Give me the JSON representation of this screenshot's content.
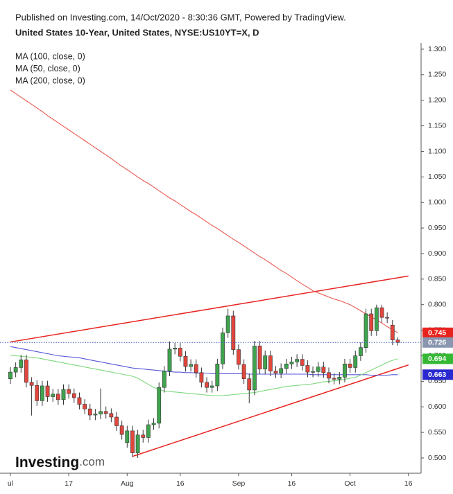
{
  "header": {
    "published": "Published on Investing.com, 14/Oct/2020 - 8:30:36 GMT, Powered by TradingView.",
    "instrument": "United States 10-Year, United States, NYSE:US10YT=X, D"
  },
  "logo": {
    "name": "Investing",
    "suffix": ".com"
  },
  "chart_data": {
    "type": "candlestick",
    "categories": [
      "ul",
      null,
      null,
      null,
      null,
      null,
      null,
      null,
      null,
      null,
      null,
      "17",
      null,
      null,
      null,
      null,
      null,
      null,
      null,
      null,
      null,
      null,
      "Aug",
      null,
      null,
      null,
      null,
      null,
      null,
      null,
      null,
      null,
      "16",
      null,
      null,
      null,
      null,
      null,
      null,
      null,
      null,
      null,
      null,
      "Sep",
      null,
      null,
      null,
      null,
      null,
      null,
      null,
      null,
      null,
      "16",
      null,
      null,
      null,
      null,
      null,
      null,
      null,
      null,
      null,
      null,
      "Oct",
      null,
      null,
      null,
      null,
      null,
      null,
      null,
      null,
      null,
      null,
      "16"
    ],
    "open": [
      0.655,
      0.668,
      0.677,
      0.692,
      0.648,
      0.642,
      0.612,
      0.641,
      0.62,
      0.625,
      0.614,
      0.634,
      0.626,
      0.618,
      0.605,
      0.596,
      0.584,
      0.586,
      0.591,
      0.587,
      0.58,
      0.563,
      0.53,
      0.553,
      0.51,
      0.545,
      0.54,
      0.565,
      0.568,
      0.638,
      0.67,
      0.713,
      0.715,
      0.699,
      0.679,
      0.683,
      0.667,
      0.648,
      0.638,
      0.641,
      0.684,
      0.745,
      0.778,
      0.712,
      0.683,
      0.655,
      0.633,
      0.719,
      0.674,
      0.7,
      0.67,
      0.666,
      0.675,
      0.684,
      0.688,
      0.693,
      0.681,
      0.668,
      0.669,
      0.678,
      0.667,
      0.656,
      0.654,
      0.658,
      0.684,
      0.677,
      0.7,
      0.716,
      0.782,
      0.749,
      0.794,
      0.775,
      0.76,
      0.731,
      null,
      null
    ],
    "high": [
      0.678,
      0.687,
      0.702,
      0.702,
      0.658,
      0.652,
      0.651,
      0.651,
      0.635,
      0.635,
      0.644,
      0.644,
      0.636,
      0.628,
      0.615,
      0.606,
      0.596,
      0.636,
      0.601,
      0.597,
      0.59,
      0.573,
      0.563,
      0.563,
      0.555,
      0.555,
      0.575,
      0.578,
      0.648,
      0.68,
      0.728,
      0.725,
      0.725,
      0.709,
      0.693,
      0.693,
      0.677,
      0.658,
      0.651,
      0.694,
      0.755,
      0.792,
      0.788,
      0.722,
      0.693,
      0.665,
      0.729,
      0.729,
      0.71,
      0.71,
      0.68,
      0.685,
      0.694,
      0.698,
      0.703,
      0.703,
      0.691,
      0.679,
      0.688,
      0.688,
      0.677,
      0.666,
      0.668,
      0.694,
      0.694,
      0.71,
      0.726,
      0.792,
      0.792,
      0.8,
      0.8,
      0.785,
      0.77,
      0.736,
      null,
      null
    ],
    "low": [
      0.645,
      0.658,
      0.667,
      0.638,
      0.583,
      0.602,
      0.602,
      0.61,
      0.61,
      0.604,
      0.604,
      0.616,
      0.608,
      0.595,
      0.586,
      0.574,
      0.574,
      0.576,
      0.577,
      0.57,
      0.553,
      0.536,
      0.52,
      0.502,
      0.5,
      0.53,
      0.53,
      0.555,
      0.558,
      0.628,
      0.66,
      0.703,
      0.689,
      0.669,
      0.669,
      0.657,
      0.638,
      0.628,
      0.628,
      0.631,
      0.674,
      0.735,
      0.702,
      0.673,
      0.645,
      0.607,
      0.623,
      0.664,
      0.664,
      0.66,
      0.656,
      0.656,
      0.665,
      0.674,
      0.678,
      0.671,
      0.658,
      0.658,
      0.659,
      0.657,
      0.646,
      0.644,
      0.644,
      0.648,
      0.667,
      0.667,
      0.69,
      0.706,
      0.739,
      0.739,
      0.765,
      0.764,
      0.721,
      0.72,
      null,
      null
    ],
    "close": [
      0.668,
      0.677,
      0.692,
      0.648,
      0.642,
      0.612,
      0.641,
      0.62,
      0.625,
      0.614,
      0.634,
      0.626,
      0.618,
      0.605,
      0.596,
      0.584,
      0.586,
      0.591,
      0.587,
      0.58,
      0.563,
      0.546,
      0.553,
      0.51,
      0.545,
      0.54,
      0.565,
      0.568,
      0.638,
      0.67,
      0.713,
      0.715,
      0.699,
      0.679,
      0.683,
      0.667,
      0.648,
      0.638,
      0.641,
      0.684,
      0.745,
      0.778,
      0.712,
      0.683,
      0.655,
      0.633,
      0.719,
      0.674,
      0.7,
      0.67,
      0.666,
      0.675,
      0.684,
      0.688,
      0.693,
      0.681,
      0.668,
      0.669,
      0.678,
      0.667,
      0.656,
      0.654,
      0.658,
      0.684,
      0.677,
      0.7,
      0.716,
      0.782,
      0.749,
      0.794,
      0.775,
      0.774,
      0.731,
      0.726,
      null,
      null
    ],
    "up_color": "#3fa34d",
    "down_color": "#e2463c",
    "series": [
      {
        "name": "MA (100, close, 0)",
        "color": "#5656d8",
        "values": [
          0.718,
          0.716,
          0.714,
          0.712,
          0.71,
          0.708,
          0.706,
          0.704,
          0.702,
          0.7,
          0.699,
          0.698,
          0.697,
          0.696,
          0.694,
          0.692,
          0.69,
          0.688,
          0.686,
          0.684,
          0.682,
          0.68,
          0.678,
          0.676,
          0.675,
          0.674,
          0.673,
          0.672,
          0.671,
          0.67,
          0.669,
          0.668,
          0.668,
          0.667,
          0.667,
          0.666,
          0.666,
          0.666,
          0.665,
          0.665,
          0.665,
          0.665,
          0.665,
          0.665,
          0.665,
          0.664,
          0.664,
          0.664,
          0.664,
          0.664,
          0.664,
          0.664,
          0.664,
          0.664,
          0.664,
          0.664,
          0.664,
          0.663,
          0.663,
          0.663,
          0.663,
          0.663,
          0.663,
          0.663,
          0.663,
          0.663,
          0.663,
          0.663,
          0.662,
          0.662,
          0.662,
          0.662,
          0.663,
          0.663,
          null,
          null
        ]
      },
      {
        "name": "MA (50, close, 0)",
        "color": "#7ad87a",
        "values": [
          0.701,
          0.7,
          0.699,
          0.698,
          0.697,
          0.696,
          0.694,
          0.692,
          0.69,
          0.688,
          0.686,
          0.684,
          0.682,
          0.68,
          0.678,
          0.676,
          0.674,
          0.672,
          0.67,
          0.668,
          0.666,
          0.664,
          0.662,
          0.66,
          0.656,
          0.65,
          0.644,
          0.638,
          0.634,
          0.631,
          0.63,
          0.629,
          0.628,
          0.627,
          0.626,
          0.625,
          0.624,
          0.623,
          0.622,
          0.622,
          0.622,
          0.623,
          0.624,
          0.625,
          0.626,
          0.627,
          0.628,
          0.63,
          0.632,
          0.634,
          0.636,
          0.638,
          0.64,
          0.641,
          0.642,
          0.643,
          0.644,
          0.645,
          0.647,
          0.649,
          0.65,
          0.651,
          0.652,
          0.654,
          0.656,
          0.658,
          0.662,
          0.667,
          0.672,
          0.677,
          0.682,
          0.687,
          0.691,
          0.694,
          null,
          null
        ]
      },
      {
        "name": "MA (200, close, 0)",
        "color": "#e8584f",
        "values": [
          1.22,
          1.213,
          1.206,
          1.199,
          1.192,
          1.185,
          1.178,
          1.17,
          1.163,
          1.156,
          1.149,
          1.142,
          1.135,
          1.128,
          1.121,
          1.114,
          1.107,
          1.1,
          1.093,
          1.086,
          1.078,
          1.071,
          1.064,
          1.057,
          1.05,
          1.043,
          1.037,
          1.03,
          1.023,
          1.016,
          1.009,
          1.003,
          0.996,
          0.989,
          0.982,
          0.976,
          0.969,
          0.962,
          0.955,
          0.949,
          0.942,
          0.935,
          0.928,
          0.922,
          0.915,
          0.908,
          0.901,
          0.894,
          0.888,
          0.881,
          0.874,
          0.867,
          0.861,
          0.854,
          0.847,
          0.84,
          0.834,
          0.827,
          0.823,
          0.819,
          0.815,
          0.811,
          0.808,
          0.804,
          0.8,
          0.794,
          0.788,
          0.782,
          0.776,
          0.77,
          0.764,
          0.757,
          0.751,
          0.745,
          null,
          null
        ]
      }
    ],
    "trendlines": [
      {
        "color": "#e8231e",
        "start": [
          0,
          0.727
        ],
        "end": [
          75,
          0.856
        ]
      },
      {
        "color": "#e8231e",
        "start": [
          23,
          0.503
        ],
        "end": [
          75,
          0.682
        ]
      }
    ],
    "ylim": [
      0.47,
      1.31
    ],
    "yticks": [
      {
        "value": 0.5,
        "label": "0.500"
      },
      {
        "value": 0.55,
        "label": "0.550"
      },
      {
        "value": 0.6,
        "label": "0.600"
      },
      {
        "value": 0.65,
        "label": "0.650"
      },
      {
        "value": 0.7,
        "label": "0.700"
      },
      {
        "value": 0.75,
        "label": "0.750"
      },
      {
        "value": 0.8,
        "label": "0.800"
      },
      {
        "value": 0.85,
        "label": "0.850"
      },
      {
        "value": 0.9,
        "label": "0.900"
      },
      {
        "value": 0.95,
        "label": "0.950"
      },
      {
        "value": 1.0,
        "label": "1.000"
      },
      {
        "value": 1.05,
        "label": "1.050"
      },
      {
        "value": 1.1,
        "label": "1.100"
      },
      {
        "value": 1.15,
        "label": "1.150"
      },
      {
        "value": 1.2,
        "label": "1.200"
      },
      {
        "value": 1.25,
        "label": "1.250"
      },
      {
        "value": 1.3,
        "label": "1.300"
      }
    ],
    "grid": false
  }
}
